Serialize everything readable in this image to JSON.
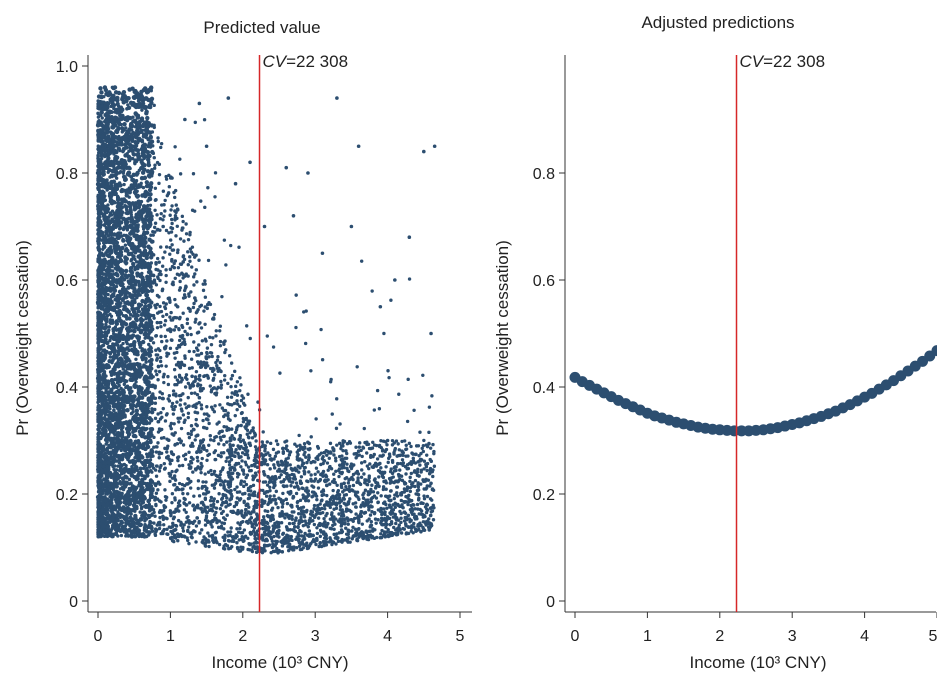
{
  "chart_data": [
    {
      "type": "scatter",
      "title": "Predicted value",
      "xlabel": "Income (10³ CNY)",
      "ylabel": "Pr (Overweight cessation)",
      "xlim": [
        0,
        5
      ],
      "ylim": [
        0,
        1.0
      ],
      "xticks": [
        "0",
        "1",
        "2",
        "3",
        "4",
        "5"
      ],
      "yticks": [
        "0",
        "0.2",
        "0.4",
        "0.6",
        "0.8",
        "1.0"
      ],
      "grid": false,
      "series": [
        {
          "color": "#2c4e70",
          "points": [
            [
              0.05,
              0.95
            ],
            [
              0.1,
              0.93
            ],
            [
              0.2,
              0.96
            ],
            [
              0.3,
              0.9
            ],
            [
              0.35,
              0.95
            ],
            [
              0.4,
              0.92
            ],
            [
              0.5,
              0.94
            ],
            [
              0.6,
              0.88
            ],
            [
              0.7,
              0.82
            ],
            [
              0.8,
              0.75
            ],
            [
              0.9,
              0.7
            ],
            [
              1.0,
              0.62
            ],
            [
              1.1,
              0.55
            ],
            [
              1.2,
              0.48
            ],
            [
              1.3,
              0.42
            ],
            [
              1.4,
              0.38
            ],
            [
              1.5,
              0.34
            ],
            [
              1.6,
              0.3
            ],
            [
              1.7,
              0.27
            ],
            [
              1.8,
              0.24
            ],
            [
              2.0,
              0.2
            ],
            [
              2.2,
              0.18
            ],
            [
              2.4,
              0.17
            ],
            [
              2.6,
              0.19
            ],
            [
              2.8,
              0.22
            ],
            [
              3.0,
              0.2
            ],
            [
              3.2,
              0.25
            ],
            [
              3.4,
              0.22
            ],
            [
              3.6,
              0.28
            ],
            [
              3.8,
              0.25
            ],
            [
              4.0,
              0.3
            ],
            [
              4.2,
              0.28
            ],
            [
              4.4,
              0.24
            ],
            [
              4.6,
              0.22
            ],
            [
              0.2,
              0.15
            ],
            [
              0.5,
              0.14
            ],
            [
              0.8,
              0.13
            ],
            [
              1.2,
              0.12
            ],
            [
              1.6,
              0.11
            ],
            [
              2.0,
              0.1
            ],
            [
              1.8,
              0.94
            ],
            [
              1.4,
              0.93
            ],
            [
              2.1,
              0.82
            ],
            [
              2.6,
              0.81
            ],
            [
              3.6,
              0.85
            ],
            [
              4.65,
              0.85
            ],
            [
              4.5,
              0.84
            ],
            [
              3.3,
              0.94
            ],
            [
              2.9,
              0.8
            ],
            [
              4.1,
              0.6
            ],
            [
              4.6,
              0.5
            ],
            [
              3.9,
              0.55
            ],
            [
              4.3,
              0.68
            ],
            [
              2.7,
              0.72
            ],
            [
              3.1,
              0.65
            ],
            [
              3.5,
              0.7
            ],
            [
              1.5,
              0.85
            ],
            [
              1.9,
              0.78
            ],
            [
              2.3,
              0.7
            ],
            [
              1.2,
              0.9
            ]
          ]
        }
      ],
      "reference_line": {
        "x": 2.2308,
        "label_italic": "CV",
        "label_value": "=22 308",
        "color": "#d62728"
      }
    },
    {
      "type": "line",
      "title": "Adjusted predictions",
      "xlabel": "Income (10³ CNY)",
      "ylabel": "Pr (Overweight cessation)",
      "xlim": [
        0,
        5
      ],
      "ylim": [
        0,
        1.0
      ],
      "xticks": [
        "0",
        "1",
        "2",
        "3",
        "4",
        "5"
      ],
      "yticks": [
        "0",
        "0.2",
        "0.4",
        "0.6",
        "0.8"
      ],
      "grid": false,
      "series": [
        {
          "color": "#2c4e70",
          "marker": "circle",
          "x": [
            0,
            0.1,
            0.2,
            0.3,
            0.4,
            0.5,
            0.6,
            0.7,
            0.8,
            0.9,
            1.0,
            1.1,
            1.2,
            1.3,
            1.4,
            1.5,
            1.6,
            1.7,
            1.8,
            1.9,
            2.0,
            2.1,
            2.2,
            2.3,
            2.4,
            2.5,
            2.6,
            2.7,
            2.8,
            2.9,
            3.0,
            3.1,
            3.2,
            3.3,
            3.4,
            3.5,
            3.6,
            3.7,
            3.8,
            3.9,
            4.0,
            4.1,
            4.2,
            4.3,
            4.4,
            4.5,
            4.6,
            4.7,
            4.8,
            4.9,
            5.0
          ],
          "y": [
            0.418,
            0.41,
            0.403,
            0.396,
            0.389,
            0.382,
            0.375,
            0.369,
            0.363,
            0.357,
            0.351,
            0.346,
            0.342,
            0.338,
            0.334,
            0.331,
            0.328,
            0.325,
            0.323,
            0.321,
            0.32,
            0.319,
            0.318,
            0.318,
            0.318,
            0.319,
            0.32,
            0.322,
            0.324,
            0.327,
            0.33,
            0.333,
            0.337,
            0.341,
            0.345,
            0.35,
            0.355,
            0.361,
            0.367,
            0.374,
            0.381,
            0.388,
            0.396,
            0.404,
            0.412,
            0.421,
            0.43,
            0.439,
            0.448,
            0.458,
            0.468
          ]
        }
      ],
      "reference_line": {
        "x": 2.2308,
        "label_italic": "CV",
        "label_value": "=22 308",
        "color": "#d62728"
      }
    }
  ]
}
